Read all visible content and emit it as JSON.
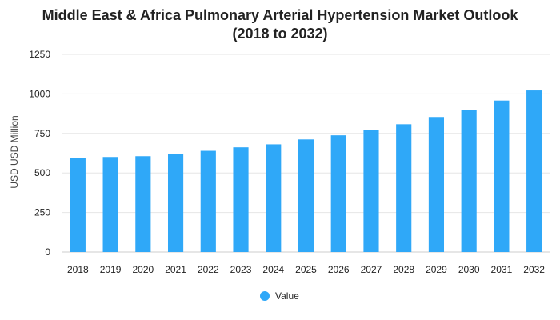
{
  "chart_data": {
    "type": "bar",
    "title_line1": "Middle East & Africa Pulmonary Arterial Hypertension Market Outlook",
    "title_line2": "(2018 to 2032)",
    "xlabel": "",
    "ylabel": "USD USD Million",
    "ylim": [
      0,
      1250
    ],
    "yticks": [
      "0",
      "250",
      "500",
      "750",
      "1000",
      "1250"
    ],
    "grid": true,
    "legend_position": "bottom-center",
    "categories": [
      "2018",
      "2019",
      "2020",
      "2021",
      "2022",
      "2023",
      "2024",
      "2025",
      "2026",
      "2027",
      "2028",
      "2029",
      "2030",
      "2031",
      "2032"
    ],
    "series": [
      {
        "name": "Value",
        "color": "#2fa8f8",
        "values": [
          595,
          601,
          606,
          621,
          640,
          662,
          681,
          712,
          738,
          771,
          808,
          854,
          900,
          958,
          1022
        ]
      }
    ]
  }
}
